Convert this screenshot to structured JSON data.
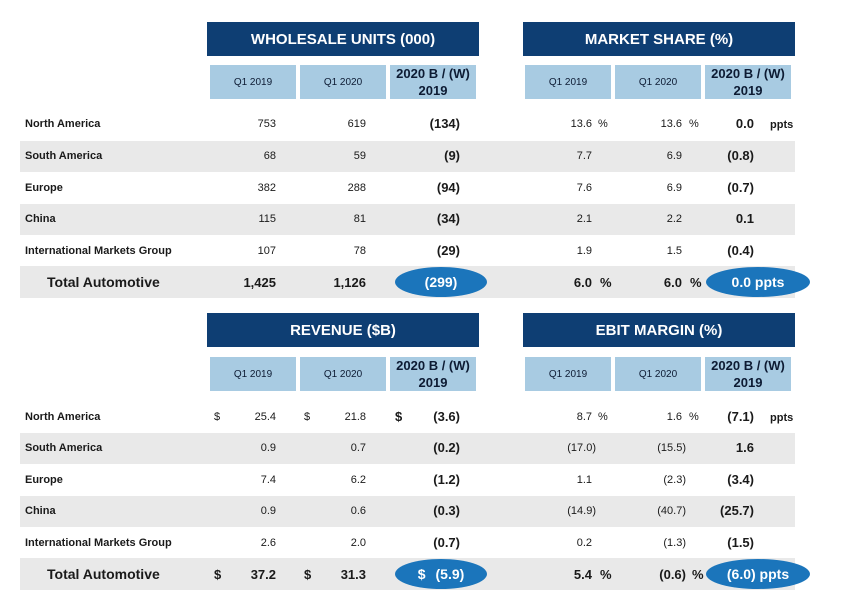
{
  "top": {
    "left_title": "WHOLESALE UNITS (000)",
    "right_title": "MARKET SHARE (%)",
    "col_q1_2019": "Q1 2019",
    "col_q1_2020": "Q1 2020",
    "col_bw": "2020 B / (W)\n2019",
    "ppts": "ppts",
    "pct": "%",
    "rows": [
      {
        "region": "North America",
        "u19": "753",
        "u20": "619",
        "ubw": "(134)",
        "s19": "13.6",
        "s20": "13.6",
        "sbw": "0.0"
      },
      {
        "region": "South America",
        "u19": "68",
        "u20": "59",
        "ubw": "(9)",
        "s19": "7.7",
        "s20": "6.9",
        "sbw": "(0.8)"
      },
      {
        "region": "Europe",
        "u19": "382",
        "u20": "288",
        "ubw": "(94)",
        "s19": "7.6",
        "s20": "6.9",
        "sbw": "(0.7)"
      },
      {
        "region": "China",
        "u19": "115",
        "u20": "81",
        "ubw": "(34)",
        "s19": "2.1",
        "s20": "2.2",
        "sbw": "0.1"
      },
      {
        "region": "International Markets Group",
        "u19": "107",
        "u20": "78",
        "ubw": "(29)",
        "s19": "1.9",
        "s20": "1.5",
        "sbw": "(0.4)"
      }
    ],
    "total": {
      "region": "Total Automotive",
      "u19": "1,425",
      "u20": "1,126",
      "ubw": "(299)",
      "s19": "6.0",
      "s20": "6.0",
      "sbw": "0.0 ppts"
    }
  },
  "bottom": {
    "left_title": "REVENUE ($B)",
    "right_title": "EBIT MARGIN (%)",
    "col_q1_2019": "Q1 2019",
    "col_q1_2020": "Q1 2020",
    "col_bw": "2020 B / (W)\n2019",
    "ppts": "ppts",
    "pct": "%",
    "dollar": "$",
    "rows": [
      {
        "region": "North America",
        "r19": "25.4",
        "r20": "21.8",
        "rbw": "(3.6)",
        "m19": "8.7",
        "m20": "1.6",
        "mbw": "(7.1)"
      },
      {
        "region": "South America",
        "r19": "0.9",
        "r20": "0.7",
        "rbw": "(0.2)",
        "m19": "(17.0)",
        "m20": "(15.5)",
        "mbw": "1.6"
      },
      {
        "region": "Europe",
        "r19": "7.4",
        "r20": "6.2",
        "rbw": "(1.2)",
        "m19": "1.1",
        "m20": "(2.3)",
        "mbw": "(3.4)"
      },
      {
        "region": "China",
        "r19": "0.9",
        "r20": "0.6",
        "rbw": "(0.3)",
        "m19": "(14.9)",
        "m20": "(40.7)",
        "mbw": "(25.7)"
      },
      {
        "region": "International Markets Group",
        "r19": "2.6",
        "r20": "2.0",
        "rbw": "(0.7)",
        "m19": "0.2",
        "m20": "(1.3)",
        "mbw": "(1.5)"
      }
    ],
    "total": {
      "region": "Total Automotive",
      "r19": "37.2",
      "r20": "31.3",
      "rbw": "(5.9)",
      "m19": "5.4",
      "m20": "(0.6)",
      "mbw": "(6.0) ppts"
    }
  },
  "colors": {
    "banner": "#0e3e73",
    "header": "#a8cbe2",
    "stripe": "#e9e9e9",
    "pill": "#1b75bb"
  }
}
